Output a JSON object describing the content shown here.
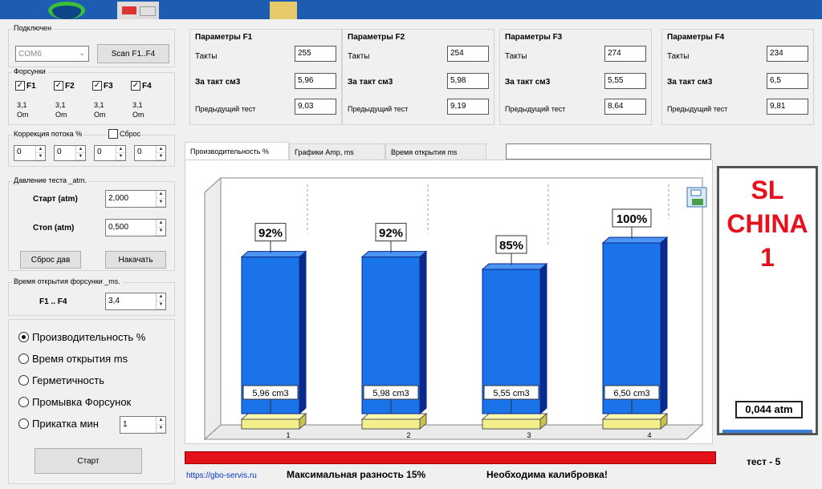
{
  "connection": {
    "title": "Подключен",
    "port": "COM6",
    "scan_label": "Scan F1..F4"
  },
  "injectors": {
    "title": "Форсунки",
    "items": [
      {
        "label": "F1",
        "checked": true,
        "res_value": "3,1",
        "res_unit": "Om"
      },
      {
        "label": "F2",
        "checked": true,
        "res_value": "3,1",
        "res_unit": "Om"
      },
      {
        "label": "F3",
        "checked": true,
        "res_value": "3,1",
        "res_unit": "Om"
      },
      {
        "label": "F4",
        "checked": true,
        "res_value": "3,1",
        "res_unit": "Om"
      }
    ]
  },
  "flow_correction": {
    "title": "Коррекция потока %",
    "reset_label": "Сброс",
    "values": [
      "0",
      "0",
      "0",
      "0"
    ]
  },
  "test_pressure": {
    "title": "Давление теста _atm.",
    "start_label": "Старт (atm)",
    "start_value": "2,000",
    "stop_label": "Стоп (atm)",
    "stop_value": "0,500",
    "reset_button": "Сброс дав",
    "pump_button": "Накачать"
  },
  "opening_time": {
    "title": "Время открытия форсунки _ms.",
    "range_label": "F1 .. F4",
    "value": "3,4"
  },
  "modes": {
    "items": [
      {
        "label": "Производительность %",
        "selected": true
      },
      {
        "label": "Время открытия ms",
        "selected": false
      },
      {
        "label": "Герметичность",
        "selected": false
      },
      {
        "label": "Промывка Форсунок",
        "selected": false
      },
      {
        "label": "Прикатка мин",
        "selected": false
      }
    ],
    "run_minutes": "1",
    "start_button": "Старт"
  },
  "params": [
    {
      "title": "Параметры F1",
      "cycles_label": "Такты",
      "cycles": "255",
      "per_cycle_label": "За такт см3",
      "per_cycle": "5,96",
      "prev_label": "Предыдущий тест",
      "prev": "9,03"
    },
    {
      "title": "Параметры F2",
      "cycles_label": "Такты",
      "cycles": "254",
      "per_cycle_label": "За такт см3",
      "per_cycle": "5,98",
      "prev_label": "Предыдущий тест",
      "prev": "9,19"
    },
    {
      "title": "Параметры F3",
      "cycles_label": "Такты",
      "cycles": "274",
      "per_cycle_label": "За такт см3",
      "per_cycle": "5,55",
      "prev_label": "Предыдущий тест",
      "prev": "8,64"
    },
    {
      "title": "Параметры F4",
      "cycles_label": "Такты",
      "cycles": "234",
      "per_cycle_label": "За такт см3",
      "per_cycle": "6,5",
      "prev_label": "Предыдущий тест",
      "prev": "9,81"
    }
  ],
  "tabs": [
    {
      "label": "Производительность %",
      "active": true
    },
    {
      "label": "Графики  Amp, ms",
      "active": false
    },
    {
      "label": "Время открытия ms",
      "active": false
    }
  ],
  "chart_data": {
    "type": "bar",
    "categories": [
      "1",
      "2",
      "3",
      "4"
    ],
    "values": [
      92,
      92,
      85,
      100
    ],
    "value_labels": [
      "92%",
      "92%",
      "85%",
      "100%"
    ],
    "volume_labels": [
      "5,96 cm3",
      "5,98 cm3",
      "5,55 cm3",
      "6,50 cm3"
    ],
    "ylim": [
      0,
      100
    ],
    "bar_color": "#1a73e8",
    "bar_side_color": "#0a2a8c",
    "base_color": "#f3ef8a"
  },
  "display": {
    "brand_lines": [
      "SL",
      "CHINA",
      "1"
    ],
    "pressure": "0,044 atm"
  },
  "status": {
    "website": "https://gbo-servis.ru",
    "max_diff": "Максимальная разность  15%",
    "message": "Необходима калибровка!",
    "test": "тест - 5"
  },
  "colors": {
    "alert_bar": "#e4101a",
    "brand": "#e8101c"
  }
}
